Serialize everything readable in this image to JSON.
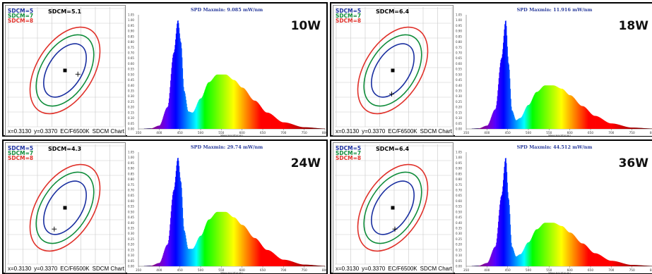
{
  "colors": {
    "sdcm5": "#1a2fa0",
    "sdcm7": "#0e8c3a",
    "sdcm8": "#e0312a",
    "frame": "#000000"
  },
  "sdcm_legend": {
    "l5": "SDCM=5",
    "l7": "SDCM=7",
    "l8": "SDCM=8"
  },
  "sdcm_footer": {
    "x": "x=0.3130",
    "y": "y=0.3370",
    "std": "EC/F6500K",
    "label": "SDCM Chart"
  },
  "spd_axis": {
    "xlabel": "Wavelength(nm)",
    "xticks": [
      "350",
      "400",
      "450",
      "500",
      "550",
      "600",
      "650",
      "700",
      "750",
      "800"
    ],
    "yticks": [
      "0.00",
      "0.05",
      "0.10",
      "0.15",
      "0.20",
      "0.25",
      "0.30",
      "0.35",
      "0.40",
      "0.45",
      "0.50",
      "0.55",
      "0.60",
      "0.65",
      "0.70",
      "0.75",
      "0.80",
      "0.85",
      "0.90",
      "0.95",
      "1.00",
      "1.05"
    ]
  },
  "panels": [
    {
      "watt": "10W",
      "sdcm_value": "SDCM=5.1",
      "spd_title": "SPD Maxmin: 9.085 mW/nm",
      "point": [
        0.62,
        0.55
      ]
    },
    {
      "watt": "18W",
      "sdcm_value": "SDCM=6.4",
      "spd_title": "SPD Maxmin: 11.916 mW/nm",
      "point": [
        0.49,
        0.72
      ]
    },
    {
      "watt": "24W",
      "sdcm_value": "SDCM=4.3",
      "spd_title": "SPD Maxmin: 29.74 mW/nm",
      "point": [
        0.4,
        0.7
      ]
    },
    {
      "watt": "36W",
      "sdcm_value": "SDCM=6.4",
      "spd_title": "SPD Maxmin: 44.512 mW/nm",
      "point": [
        0.52,
        0.7
      ]
    }
  ],
  "chart_data": [
    {
      "type": "area",
      "title": "SPD Maxmin: 9.085 mW/nm",
      "xlabel": "Wavelength(nm)",
      "xlim": [
        350,
        800
      ],
      "ylim": [
        0,
        1.05
      ],
      "x": [
        350,
        380,
        400,
        420,
        435,
        445,
        452,
        460,
        470,
        480,
        500,
        520,
        540,
        560,
        580,
        600,
        630,
        660,
        700,
        750,
        800
      ],
      "y": [
        0,
        0.005,
        0.03,
        0.2,
        0.7,
        1.0,
        0.8,
        0.35,
        0.16,
        0.15,
        0.28,
        0.43,
        0.5,
        0.5,
        0.45,
        0.38,
        0.26,
        0.15,
        0.06,
        0.015,
        0.003
      ]
    },
    {
      "type": "area",
      "title": "SPD Maxmin: 11.916 mW/nm",
      "xlabel": "Wavelength(nm)",
      "xlim": [
        350,
        800
      ],
      "ylim": [
        0,
        1.05
      ],
      "x": [
        350,
        380,
        400,
        420,
        435,
        445,
        452,
        460,
        470,
        480,
        500,
        520,
        540,
        560,
        580,
        600,
        630,
        660,
        700,
        750,
        800
      ],
      "y": [
        0,
        0.005,
        0.03,
        0.18,
        0.65,
        1.0,
        0.6,
        0.17,
        0.08,
        0.1,
        0.22,
        0.34,
        0.4,
        0.4,
        0.37,
        0.31,
        0.21,
        0.12,
        0.05,
        0.012,
        0.003
      ]
    },
    {
      "type": "area",
      "title": "SPD Maxmin: 29.74 mW/nm",
      "xlabel": "Wavelength(nm)",
      "xlim": [
        350,
        800
      ],
      "ylim": [
        0,
        1.05
      ],
      "x": [
        350,
        380,
        400,
        420,
        435,
        445,
        452,
        460,
        470,
        480,
        500,
        520,
        540,
        560,
        580,
        600,
        630,
        660,
        700,
        750,
        800
      ],
      "y": [
        0,
        0.005,
        0.03,
        0.2,
        0.7,
        1.0,
        0.78,
        0.33,
        0.16,
        0.16,
        0.28,
        0.43,
        0.5,
        0.5,
        0.45,
        0.38,
        0.26,
        0.15,
        0.06,
        0.015,
        0.003
      ]
    },
    {
      "type": "area",
      "title": "SPD Maxmin: 44.512 mW/nm",
      "xlabel": "Wavelength(nm)",
      "xlim": [
        350,
        800
      ],
      "ylim": [
        0,
        1.05
      ],
      "x": [
        350,
        380,
        400,
        420,
        435,
        445,
        452,
        460,
        470,
        480,
        500,
        520,
        540,
        560,
        580,
        600,
        630,
        660,
        700,
        750,
        800
      ],
      "y": [
        0,
        0.005,
        0.03,
        0.18,
        0.65,
        1.0,
        0.62,
        0.18,
        0.09,
        0.11,
        0.22,
        0.34,
        0.4,
        0.4,
        0.37,
        0.31,
        0.21,
        0.12,
        0.05,
        0.012,
        0.003
      ]
    }
  ]
}
